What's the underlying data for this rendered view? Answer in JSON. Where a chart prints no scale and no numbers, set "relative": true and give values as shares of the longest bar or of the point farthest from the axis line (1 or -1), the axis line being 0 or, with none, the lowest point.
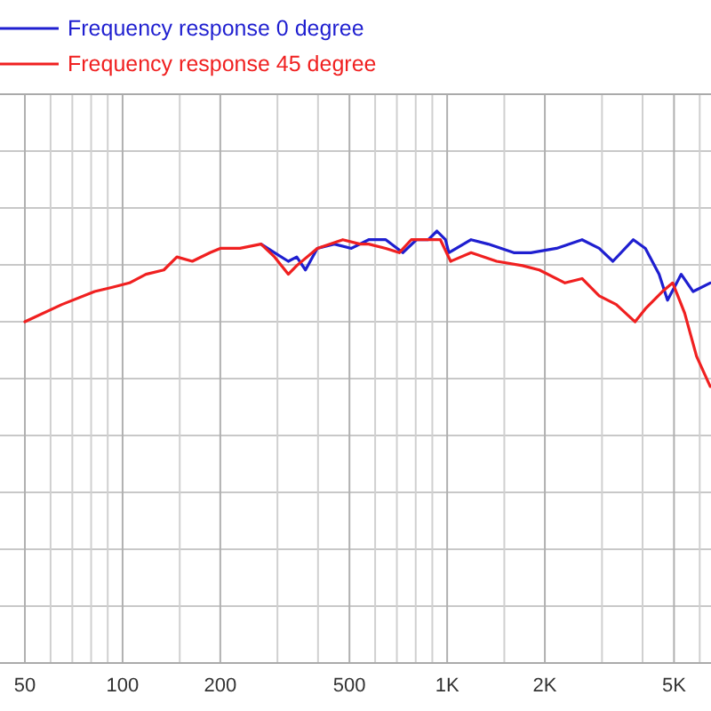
{
  "chart_data": {
    "type": "line",
    "relative": true,
    "log": "x",
    "grid": true,
    "legend": "top left",
    "line_style": "solid",
    "xlim": [
      50,
      6500
    ],
    "xticks": [
      {
        "value": 50,
        "label": "50"
      },
      {
        "value": 60,
        "label": null
      },
      {
        "value": 70,
        "label": null
      },
      {
        "value": 80,
        "label": null
      },
      {
        "value": 90,
        "label": null
      },
      {
        "value": 100,
        "label": "100"
      },
      {
        "value": 150,
        "label": null
      },
      {
        "value": 200,
        "label": "200"
      },
      {
        "value": 300,
        "label": null
      },
      {
        "value": 400,
        "label": null
      },
      {
        "value": 500,
        "label": "500"
      },
      {
        "value": 600,
        "label": null
      },
      {
        "value": 700,
        "label": null
      },
      {
        "value": 800,
        "label": null
      },
      {
        "value": 900,
        "label": null
      },
      {
        "value": 1000,
        "label": "1K"
      },
      {
        "value": 1500,
        "label": null
      },
      {
        "value": 2000,
        "label": "2K"
      },
      {
        "value": 3000,
        "label": null
      },
      {
        "value": 4000,
        "label": null
      },
      {
        "value": 5000,
        "label": "5K"
      },
      {
        "value": 6000,
        "label": null
      }
    ],
    "series": [
      {
        "name": "Frequency response 0 degree",
        "color": "#1f1fd0",
        "x": [
          267,
          294,
          324,
          344,
          366,
          398,
          449,
          507,
          573,
          647,
          730,
          804,
          875,
          930,
          988,
          1012,
          1185,
          1337,
          1604,
          1811,
          2173,
          2604,
          2940,
          3241,
          3747,
          4081,
          4497,
          4775,
          5262,
          5726,
          6465
        ],
        "values": [
          0.97,
          0.95,
          0.93,
          0.94,
          0.91,
          0.96,
          0.97,
          0.96,
          0.98,
          0.98,
          0.95,
          0.98,
          0.98,
          1.0,
          0.98,
          0.95,
          0.98,
          0.97,
          0.95,
          0.95,
          0.96,
          0.98,
          0.96,
          0.93,
          0.98,
          0.96,
          0.9,
          0.84,
          0.9,
          0.86,
          0.88
        ]
      },
      {
        "name": "Frequency response 45 degree",
        "color": "#f02020",
        "x": [
          50,
          65,
          82,
          93,
          105,
          118,
          134,
          147,
          164,
          186,
          200,
          230,
          267,
          294,
          324,
          344,
          398,
          477,
          539,
          573,
          647,
          712,
          775,
          875,
          953,
          1025,
          1185,
          1421,
          1706,
          1923,
          2307,
          2604,
          2940,
          3319,
          3793,
          4081,
          4603,
          4953,
          5393,
          5867,
          6465
        ],
        "values": [
          0.79,
          0.83,
          0.86,
          0.87,
          0.88,
          0.9,
          0.91,
          0.94,
          0.93,
          0.95,
          0.96,
          0.96,
          0.97,
          0.94,
          0.9,
          0.92,
          0.96,
          0.98,
          0.97,
          0.97,
          0.96,
          0.95,
          0.98,
          0.98,
          0.98,
          0.93,
          0.95,
          0.93,
          0.92,
          0.91,
          0.88,
          0.89,
          0.85,
          0.83,
          0.79,
          0.82,
          0.86,
          0.88,
          0.81,
          0.71,
          0.64
        ]
      }
    ]
  }
}
